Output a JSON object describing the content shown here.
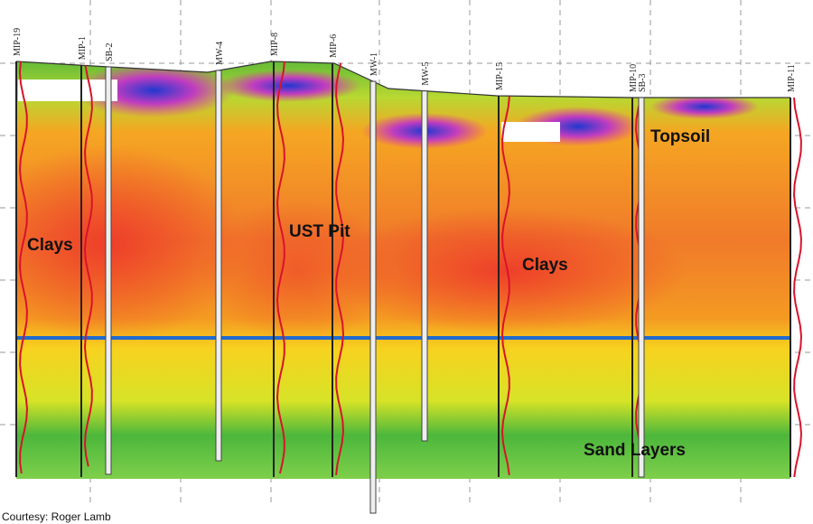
{
  "boreholes": [
    "MIP-19",
    "MIP-1",
    "SB-2",
    "MW-4",
    "MIP-8",
    "MIP-6",
    "MW-1",
    "MW-5",
    "MIP-15",
    "MIP-10",
    "SB-3",
    "MIP-11"
  ],
  "zones": [
    "Clays",
    "UST Pit",
    "Clays",
    "Topsoil",
    "Sand Layers"
  ],
  "credit": "Courtesy: Roger Lamb"
}
